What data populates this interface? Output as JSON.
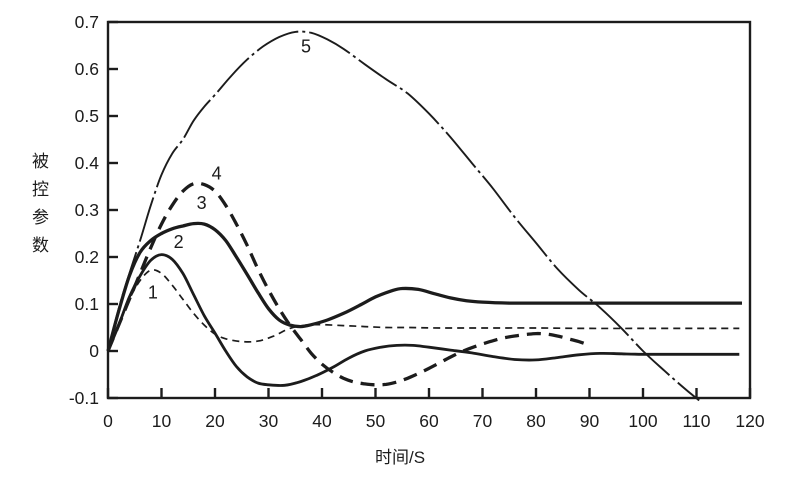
{
  "figure": {
    "background": "#ffffff",
    "ink_color": "#1c1c1c"
  },
  "chart_data": {
    "type": "line",
    "title": "",
    "xlabel": "时间/S",
    "ylabel": "被控参数",
    "xlim": [
      0,
      120
    ],
    "ylim": [
      -0.1,
      0.7
    ],
    "grid": false,
    "legend_position": "none-inline-curve-labels",
    "x_ticks": [
      0,
      10,
      20,
      30,
      40,
      50,
      60,
      70,
      80,
      90,
      100,
      110,
      120
    ],
    "x_tick_labels": [
      "0",
      "10",
      "20",
      "30",
      "40",
      "50",
      "60",
      "70",
      "80",
      "90",
      "100",
      "110",
      "120"
    ],
    "y_ticks": [
      -0.1,
      0,
      0.1,
      0.2,
      0.3,
      0.4,
      0.5,
      0.6,
      0.7
    ],
    "y_tick_labels": [
      "-0.1",
      "0",
      "0.1",
      "0.2",
      "0.3",
      "0.4",
      "0.5",
      "0.6",
      "0.7"
    ],
    "series": [
      {
        "name": "1",
        "line_style": "thin-dashed",
        "color": "#1c1c1c",
        "label_pos": {
          "t": 8.4,
          "v": 0.125
        },
        "points": [
          [
            0,
            0
          ],
          [
            2,
            0.055
          ],
          [
            4,
            0.11
          ],
          [
            6,
            0.15
          ],
          [
            8,
            0.172
          ],
          [
            10,
            0.165
          ],
          [
            12,
            0.14
          ],
          [
            14,
            0.11
          ],
          [
            16,
            0.08
          ],
          [
            18,
            0.055
          ],
          [
            20,
            0.036
          ],
          [
            22,
            0.026
          ],
          [
            25,
            0.02
          ],
          [
            28,
            0.021
          ],
          [
            31,
            0.032
          ],
          [
            34,
            0.048
          ],
          [
            37,
            0.055
          ],
          [
            40,
            0.056
          ],
          [
            44,
            0.054
          ],
          [
            48,
            0.052
          ],
          [
            52,
            0.05
          ],
          [
            56,
            0.05
          ],
          [
            62,
            0.049
          ],
          [
            70,
            0.049
          ],
          [
            80,
            0.049
          ],
          [
            90,
            0.048
          ],
          [
            100,
            0.048
          ],
          [
            110,
            0.048
          ],
          [
            118,
            0.048
          ]
        ]
      },
      {
        "name": "2",
        "line_style": "medium-solid",
        "color": "#1c1c1c",
        "label_pos": {
          "t": 13.2,
          "v": 0.232
        },
        "points": [
          [
            0,
            0
          ],
          [
            2,
            0.055
          ],
          [
            4,
            0.115
          ],
          [
            6,
            0.16
          ],
          [
            8,
            0.193
          ],
          [
            10,
            0.205
          ],
          [
            12,
            0.195
          ],
          [
            14,
            0.165
          ],
          [
            16,
            0.12
          ],
          [
            18,
            0.075
          ],
          [
            20,
            0.038
          ],
          [
            22,
            0
          ],
          [
            24,
            -0.033
          ],
          [
            26,
            -0.055
          ],
          [
            28,
            -0.068
          ],
          [
            30,
            -0.072
          ],
          [
            33,
            -0.073
          ],
          [
            36,
            -0.065
          ],
          [
            39,
            -0.052
          ],
          [
            42,
            -0.035
          ],
          [
            45,
            -0.015
          ],
          [
            48,
            0
          ],
          [
            51,
            0.008
          ],
          [
            54,
            0.012
          ],
          [
            57,
            0.012
          ],
          [
            60,
            0.008
          ],
          [
            64,
            0.002
          ],
          [
            68,
            -0.004
          ],
          [
            72,
            -0.012
          ],
          [
            76,
            -0.018
          ],
          [
            80,
            -0.019
          ],
          [
            84,
            -0.014
          ],
          [
            88,
            -0.008
          ],
          [
            92,
            -0.005
          ],
          [
            96,
            -0.006
          ],
          [
            100,
            -0.007
          ],
          [
            110,
            -0.007
          ],
          [
            118,
            -0.007
          ]
        ]
      },
      {
        "name": "3",
        "line_style": "thick-solid",
        "color": "#1c1c1c",
        "label_pos": {
          "t": 17.5,
          "v": 0.315
        },
        "points": [
          [
            0,
            0
          ],
          [
            2,
            0.085
          ],
          [
            4,
            0.16
          ],
          [
            6,
            0.21
          ],
          [
            8,
            0.235
          ],
          [
            10,
            0.25
          ],
          [
            12,
            0.26
          ],
          [
            14,
            0.266
          ],
          [
            16,
            0.271
          ],
          [
            18,
            0.27
          ],
          [
            20,
            0.258
          ],
          [
            22,
            0.235
          ],
          [
            24,
            0.2
          ],
          [
            26,
            0.163
          ],
          [
            28,
            0.125
          ],
          [
            30,
            0.09
          ],
          [
            32,
            0.066
          ],
          [
            34,
            0.055
          ],
          [
            36,
            0.052
          ],
          [
            38,
            0.056
          ],
          [
            41,
            0.066
          ],
          [
            44,
            0.08
          ],
          [
            47,
            0.097
          ],
          [
            50,
            0.115
          ],
          [
            53,
            0.128
          ],
          [
            55,
            0.133
          ],
          [
            58,
            0.131
          ],
          [
            61,
            0.122
          ],
          [
            64,
            0.113
          ],
          [
            67,
            0.107
          ],
          [
            70,
            0.104
          ],
          [
            75,
            0.102
          ],
          [
            80,
            0.102
          ],
          [
            90,
            0.102
          ],
          [
            100,
            0.102
          ],
          [
            110,
            0.102
          ],
          [
            118.5,
            0.102
          ]
        ]
      },
      {
        "name": "4",
        "line_style": "thick-dashed",
        "color": "#1c1c1c",
        "label_pos": {
          "t": 20.3,
          "v": 0.378
        },
        "points": [
          [
            0,
            0
          ],
          [
            2,
            0.055
          ],
          [
            4,
            0.11
          ],
          [
            6,
            0.165
          ],
          [
            8,
            0.22
          ],
          [
            10,
            0.27
          ],
          [
            12,
            0.31
          ],
          [
            14,
            0.34
          ],
          [
            16,
            0.356
          ],
          [
            18,
            0.354
          ],
          [
            20,
            0.34
          ],
          [
            22,
            0.31
          ],
          [
            24,
            0.27
          ],
          [
            26,
            0.225
          ],
          [
            28,
            0.175
          ],
          [
            30,
            0.13
          ],
          [
            32,
            0.09
          ],
          [
            34,
            0.055
          ],
          [
            36,
            0.025
          ],
          [
            38,
            -0.005
          ],
          [
            40,
            -0.028
          ],
          [
            42,
            -0.045
          ],
          [
            44,
            -0.058
          ],
          [
            46,
            -0.066
          ],
          [
            48,
            -0.07
          ],
          [
            50,
            -0.072
          ],
          [
            52,
            -0.071
          ],
          [
            54,
            -0.066
          ],
          [
            56,
            -0.058
          ],
          [
            58,
            -0.048
          ],
          [
            60,
            -0.037
          ],
          [
            62,
            -0.025
          ],
          [
            64,
            -0.013
          ],
          [
            66,
            -0.002
          ],
          [
            68,
            0.007
          ],
          [
            70,
            0.015
          ],
          [
            72,
            0.022
          ],
          [
            74,
            0.028
          ],
          [
            76,
            0.032
          ],
          [
            78,
            0.035
          ],
          [
            80,
            0.037
          ],
          [
            82,
            0.036
          ],
          [
            84,
            0.032
          ],
          [
            86,
            0.026
          ],
          [
            88,
            0.02
          ],
          [
            90,
            0.012
          ]
        ]
      },
      {
        "name": "5",
        "line_style": "thin-dashdot",
        "color": "#1c1c1c",
        "label_pos": {
          "t": 37,
          "v": 0.648
        },
        "points": [
          [
            0,
            0
          ],
          [
            2,
            0.09
          ],
          [
            4,
            0.165
          ],
          [
            6,
            0.235
          ],
          [
            8,
            0.31
          ],
          [
            10,
            0.375
          ],
          [
            12,
            0.42
          ],
          [
            14,
            0.45
          ],
          [
            16,
            0.49
          ],
          [
            18,
            0.52
          ],
          [
            20,
            0.545
          ],
          [
            23,
            0.585
          ],
          [
            26,
            0.62
          ],
          [
            29,
            0.648
          ],
          [
            32,
            0.668
          ],
          [
            35,
            0.679
          ],
          [
            38,
            0.677
          ],
          [
            41,
            0.663
          ],
          [
            44,
            0.643
          ],
          [
            48,
            0.61
          ],
          [
            52,
            0.578
          ],
          [
            56,
            0.548
          ],
          [
            60,
            0.505
          ],
          [
            64,
            0.455
          ],
          [
            68,
            0.4
          ],
          [
            72,
            0.345
          ],
          [
            76,
            0.285
          ],
          [
            80,
            0.23
          ],
          [
            84,
            0.175
          ],
          [
            88,
            0.13
          ],
          [
            92,
            0.092
          ],
          [
            96,
            0.048
          ],
          [
            100,
            0
          ],
          [
            104,
            -0.042
          ],
          [
            108,
            -0.082
          ],
          [
            110.5,
            -0.105
          ]
        ]
      }
    ]
  }
}
